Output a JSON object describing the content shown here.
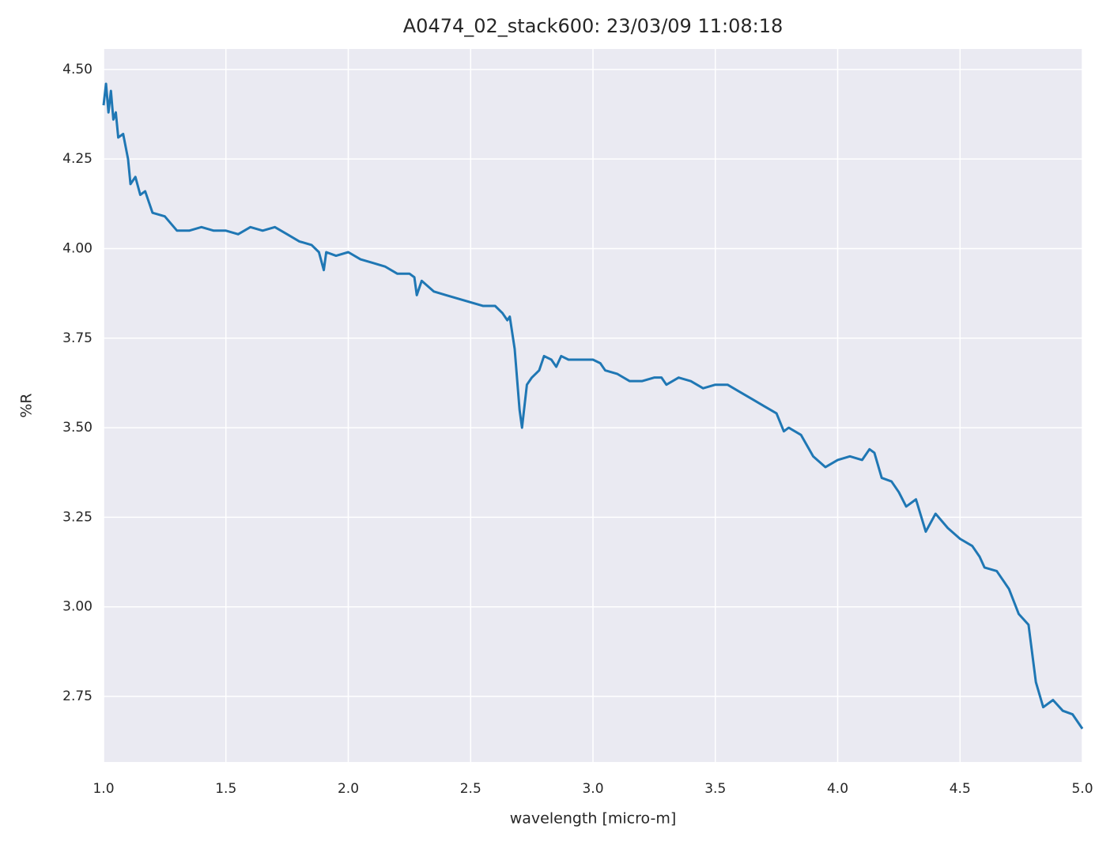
{
  "chart_data": {
    "type": "line",
    "title": "A0474_02_stack600:  23/03/09 11:08:18",
    "xlabel": "wavelength [micro-m]",
    "ylabel": "%R",
    "x": [
      1.0,
      1.01,
      1.02,
      1.03,
      1.04,
      1.05,
      1.06,
      1.08,
      1.1,
      1.11,
      1.13,
      1.15,
      1.17,
      1.2,
      1.25,
      1.3,
      1.35,
      1.4,
      1.45,
      1.5,
      1.55,
      1.6,
      1.65,
      1.7,
      1.75,
      1.8,
      1.85,
      1.88,
      1.9,
      1.91,
      1.95,
      2.0,
      2.05,
      2.1,
      2.15,
      2.2,
      2.25,
      2.27,
      2.28,
      2.3,
      2.35,
      2.4,
      2.45,
      2.5,
      2.55,
      2.6,
      2.63,
      2.65,
      2.66,
      2.68,
      2.7,
      2.71,
      2.73,
      2.75,
      2.78,
      2.8,
      2.83,
      2.85,
      2.87,
      2.9,
      2.95,
      3.0,
      3.03,
      3.05,
      3.1,
      3.15,
      3.2,
      3.25,
      3.28,
      3.3,
      3.35,
      3.4,
      3.45,
      3.5,
      3.55,
      3.6,
      3.65,
      3.7,
      3.75,
      3.78,
      3.8,
      3.85,
      3.9,
      3.95,
      4.0,
      4.05,
      4.1,
      4.13,
      4.15,
      4.18,
      4.22,
      4.25,
      4.28,
      4.32,
      4.36,
      4.4,
      4.45,
      4.5,
      4.55,
      4.58,
      4.6,
      4.65,
      4.7,
      4.74,
      4.78,
      4.81,
      4.84,
      4.88,
      4.92,
      4.96,
      5.0
    ],
    "series": [
      {
        "name": "%R",
        "color": "#1f77b4",
        "values": [
          4.4,
          4.46,
          4.38,
          4.44,
          4.36,
          4.38,
          4.31,
          4.32,
          4.25,
          4.18,
          4.2,
          4.15,
          4.16,
          4.1,
          4.09,
          4.05,
          4.05,
          4.06,
          4.05,
          4.05,
          4.04,
          4.06,
          4.05,
          4.06,
          4.04,
          4.02,
          4.01,
          3.99,
          3.94,
          3.99,
          3.98,
          3.99,
          3.97,
          3.96,
          3.95,
          3.93,
          3.93,
          3.92,
          3.87,
          3.91,
          3.88,
          3.87,
          3.86,
          3.85,
          3.84,
          3.84,
          3.82,
          3.8,
          3.81,
          3.72,
          3.55,
          3.5,
          3.62,
          3.64,
          3.66,
          3.7,
          3.69,
          3.67,
          3.7,
          3.69,
          3.69,
          3.69,
          3.68,
          3.66,
          3.65,
          3.63,
          3.63,
          3.64,
          3.64,
          3.62,
          3.64,
          3.63,
          3.61,
          3.62,
          3.62,
          3.6,
          3.58,
          3.56,
          3.54,
          3.49,
          3.5,
          3.48,
          3.42,
          3.39,
          3.41,
          3.42,
          3.41,
          3.44,
          3.43,
          3.36,
          3.35,
          3.32,
          3.28,
          3.3,
          3.21,
          3.26,
          3.22,
          3.19,
          3.17,
          3.14,
          3.11,
          3.1,
          3.05,
          2.98,
          2.95,
          2.79,
          2.72,
          2.74,
          2.71,
          2.7,
          2.66
        ]
      }
    ],
    "xlim": [
      1.0,
      5.0
    ],
    "xticks": [
      {
        "value": 1.0,
        "label": "1.0"
      },
      {
        "value": 1.5,
        "label": "1.5"
      },
      {
        "value": 2.0,
        "label": "2.0"
      },
      {
        "value": 2.5,
        "label": "2.5"
      },
      {
        "value": 3.0,
        "label": "3.0"
      },
      {
        "value": 3.5,
        "label": "3.5"
      },
      {
        "value": 4.0,
        "label": "4.0"
      },
      {
        "value": 4.5,
        "label": "4.5"
      },
      {
        "value": 5.0,
        "label": "5.0"
      }
    ],
    "ylim": [
      2.567,
      4.557
    ],
    "yticks": [
      {
        "value": 2.75,
        "label": "2.75"
      },
      {
        "value": 3.0,
        "label": "3.00"
      },
      {
        "value": 3.25,
        "label": "3.25"
      },
      {
        "value": 3.5,
        "label": "3.50"
      },
      {
        "value": 3.75,
        "label": "3.75"
      },
      {
        "value": 4.0,
        "label": "4.00"
      },
      {
        "value": 4.25,
        "label": "4.25"
      },
      {
        "value": 4.5,
        "label": "4.50"
      }
    ],
    "grid": true
  }
}
